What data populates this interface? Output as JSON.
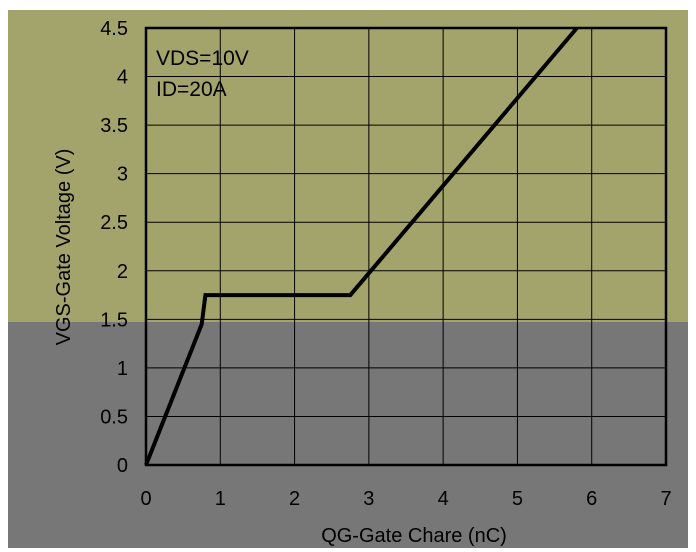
{
  "colors": {
    "top_band": "#a2a46b",
    "bottom_band": "#777777",
    "grid": "#000000",
    "curve": "#000000"
  },
  "chart_data": {
    "type": "line",
    "ylabel": "VGS-Gate Voltage (V)",
    "xlabel": "QG-Gate Chare (nC)",
    "xlim": [
      0,
      7
    ],
    "ylim": [
      0,
      4.5
    ],
    "x_ticks": [
      "0",
      "1",
      "2",
      "3",
      "4",
      "5",
      "6",
      "7"
    ],
    "y_ticks": [
      "0",
      "0.5",
      "1",
      "1.5",
      "2",
      "2.5",
      "3",
      "3.5",
      "4",
      "4.5"
    ],
    "grid": true,
    "annotations": [
      "VDS=10V",
      "ID=20A"
    ],
    "series": [
      {
        "x": [
          0,
          0.75,
          0.8,
          2.75,
          5.8
        ],
        "y": [
          0,
          1.45,
          1.75,
          1.75,
          4.5
        ]
      }
    ]
  }
}
